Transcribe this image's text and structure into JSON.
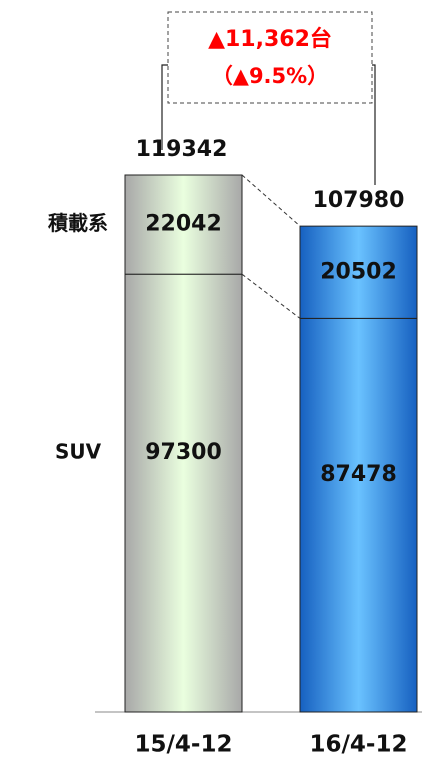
{
  "chart_data": {
    "type": "stacked_bar",
    "categories": [
      "15/4-12",
      "16/4-12"
    ],
    "series": [
      {
        "name": "SUV",
        "values": [
          97300,
          87478
        ]
      },
      {
        "name": "積載系",
        "values": [
          22042,
          20502
        ]
      }
    ],
    "totals": [
      119342,
      107980
    ],
    "bar_colors": [
      [
        "#a8a8a8",
        "#eaffdf"
      ],
      [
        "#1660c0",
        "#6ac2ff"
      ]
    ],
    "annotations": [
      "▲11,362台",
      "（▲9.5%）"
    ],
    "annotation_color": "#ff0000"
  }
}
